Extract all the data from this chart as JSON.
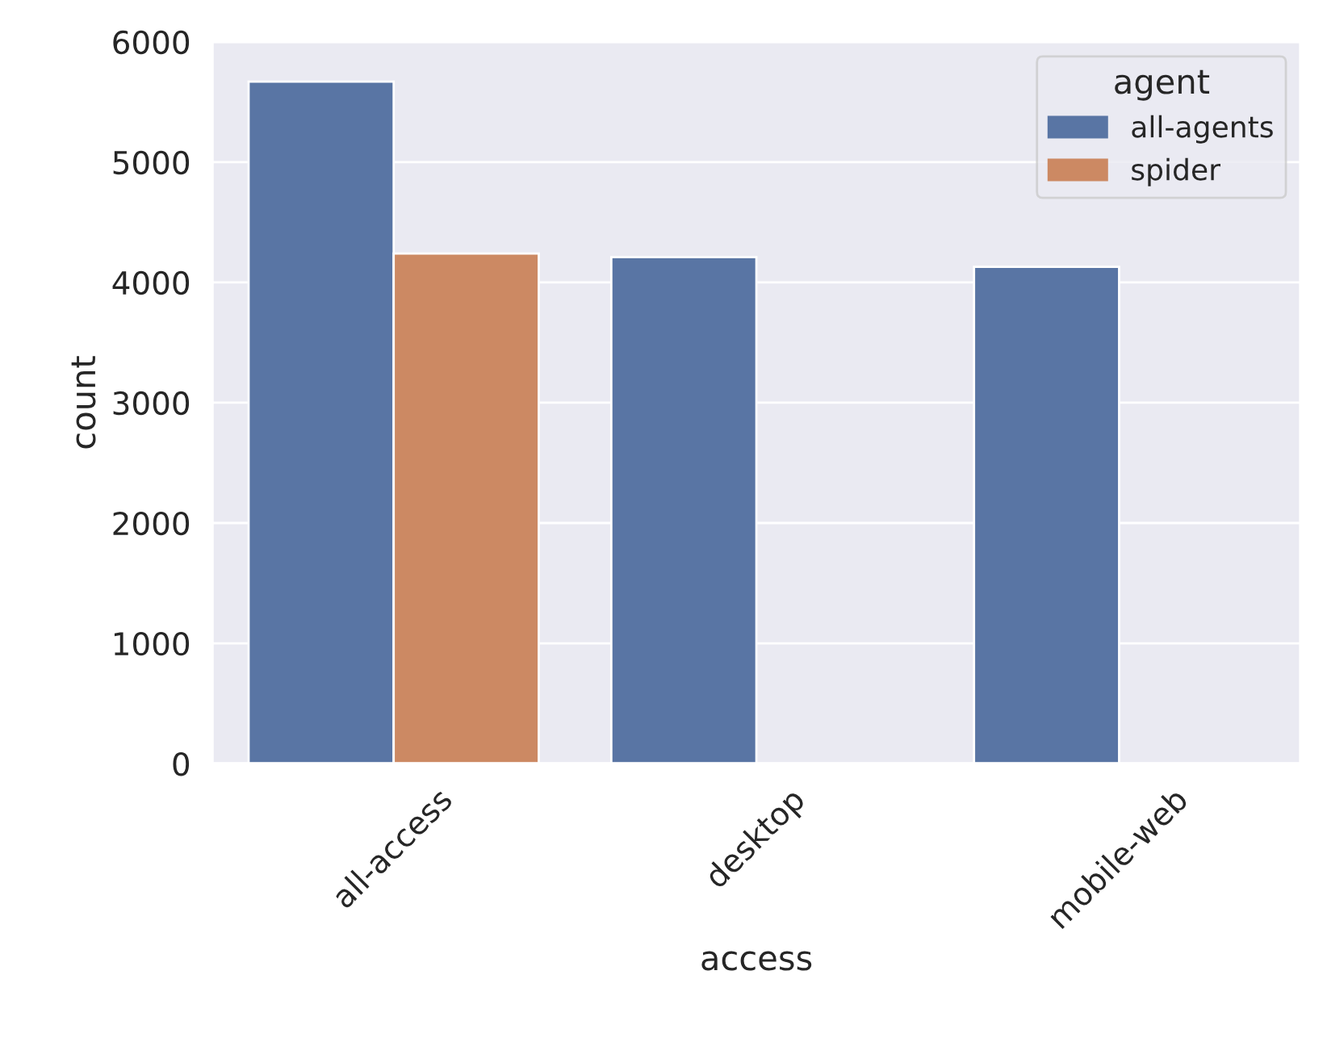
{
  "chart_data": {
    "type": "bar",
    "xlabel": "access",
    "ylabel": "count",
    "legend_title": "agent",
    "categories": [
      "all-access",
      "desktop",
      "mobile-web"
    ],
    "series": [
      {
        "name": "all-agents",
        "color": "#5975a4",
        "values": [
          5670,
          4210,
          4130
        ]
      },
      {
        "name": "spider",
        "color": "#cc8963",
        "values": [
          4240,
          null,
          null
        ]
      }
    ],
    "ylim": [
      0,
      6000
    ],
    "yticks": [
      0,
      1000,
      2000,
      3000,
      4000,
      5000,
      6000
    ],
    "grid": "y",
    "legend": "top right"
  }
}
